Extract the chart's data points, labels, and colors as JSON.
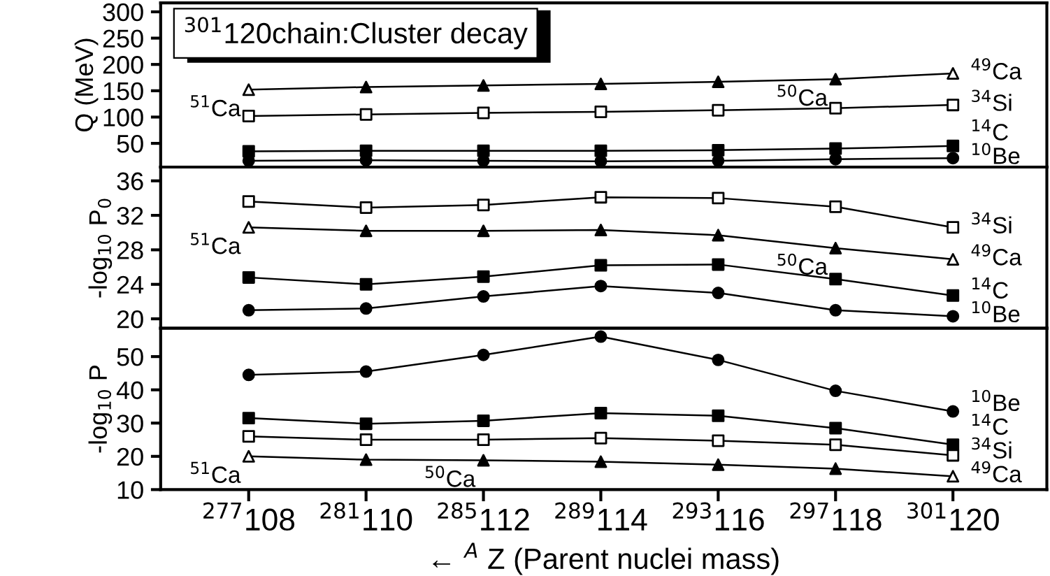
{
  "chart_data": [
    {
      "type": "line",
      "title": "$^{301}$120chain:Cluster decay",
      "ylabel": "Q (MeV)",
      "categories": [
        "$^{277}$108",
        "$^{281}$110",
        "$^{285}$112",
        "$^{289}$114",
        "$^{293}$116",
        "$^{297}$118",
        "$^{301}$120"
      ],
      "ylim": [
        5,
        317
      ],
      "yticks": [
        50,
        100,
        150,
        200,
        250,
        300
      ],
      "tick_labels": "y",
      "grid": false,
      "legend": false,
      "series": [
        {
          "name": "$^{49}$Ca",
          "color": "#000000",
          "marker": "triangle",
          "colors": [
            "#ffffff",
            "#000000",
            "#000000",
            "#000000",
            "#000000",
            "#000000",
            "#ffffff"
          ],
          "values": [
            152,
            157,
            160,
            163,
            167,
            172,
            183
          ]
        },
        {
          "name": "$^{34}$Si",
          "color": "#000000",
          "marker": "square",
          "colors": [
            "#ffffff",
            "#ffffff",
            "#ffffff",
            "#ffffff",
            "#ffffff",
            "#ffffff",
            "#ffffff"
          ],
          "values": [
            102,
            105,
            108,
            110,
            113,
            117,
            123
          ]
        },
        {
          "name": "$^{14}$C",
          "color": "#000000",
          "marker": "square",
          "values": [
            35,
            36,
            36,
            36,
            37,
            40,
            45
          ]
        },
        {
          "name": "$^{10}$Be",
          "color": "#000000",
          "marker": "circle",
          "values": [
            17,
            18,
            17,
            16,
            17,
            20,
            22
          ]
        }
      ],
      "annotations": [
        {
          "text": "$^{51}$Ca",
          "x": "$^{277}$108",
          "y": 152
        },
        {
          "text": "$^{50}$Ca",
          "x": "$^{297}$118",
          "y": 172
        }
      ]
    },
    {
      "type": "line",
      "ylabel": "-log$_{10}$ P$_{0}$",
      "categories": [
        "$^{277}$108",
        "$^{281}$110",
        "$^{285}$112",
        "$^{289}$114",
        "$^{293}$116",
        "$^{297}$118",
        "$^{301}$120"
      ],
      "ylim": [
        18.9,
        37.6
      ],
      "yticks": [
        20,
        24,
        28,
        32,
        36
      ],
      "tick_labels": "y",
      "grid": false,
      "legend": false,
      "series": [
        {
          "name": "$^{34}$Si",
          "color": "#000000",
          "marker": "square",
          "colors": [
            "#ffffff",
            "#ffffff",
            "#ffffff",
            "#ffffff",
            "#ffffff",
            "#ffffff",
            "#ffffff"
          ],
          "values": [
            33.6,
            32.9,
            33.2,
            34.1,
            34.0,
            33.0,
            30.6
          ]
        },
        {
          "name": "$^{49}$Ca",
          "color": "#000000",
          "marker": "triangle",
          "colors": [
            "#ffffff",
            "#000000",
            "#000000",
            "#000000",
            "#000000",
            "#000000",
            "#ffffff"
          ],
          "values": [
            30.6,
            30.2,
            30.2,
            30.3,
            29.7,
            28.2,
            26.9
          ]
        },
        {
          "name": "$^{14}$C",
          "color": "#000000",
          "marker": "square",
          "values": [
            24.8,
            24.0,
            24.9,
            26.2,
            26.3,
            24.6,
            22.7
          ]
        },
        {
          "name": "$^{10}$Be",
          "color": "#000000",
          "marker": "circle",
          "values": [
            21.0,
            21.2,
            22.6,
            23.8,
            23.0,
            21.0,
            20.3
          ]
        }
      ],
      "annotations": [
        {
          "text": "$^{51}$Ca",
          "x": "$^{277}$108",
          "y": 30.6
        },
        {
          "text": "$^{50}$Ca",
          "x": "$^{297}$118",
          "y": 28.2
        }
      ]
    },
    {
      "type": "line",
      "ylabel": "-log$_{10}$ P",
      "xlabel": "← $^{A}$ Z (Parent nuclei mass)",
      "categories": [
        "$^{277}$108",
        "$^{281}$110",
        "$^{285}$112",
        "$^{289}$114",
        "$^{293}$116",
        "$^{297}$118",
        "$^{301}$120"
      ],
      "ylim": [
        10,
        58.5
      ],
      "yticks": [
        10,
        20,
        30,
        40,
        50
      ],
      "grid": false,
      "legend": false,
      "series": [
        {
          "name": "$^{10}$Be",
          "color": "#000000",
          "marker": "circle",
          "values": [
            44.5,
            45.5,
            50.5,
            56,
            49,
            39.7,
            33.5
          ]
        },
        {
          "name": "$^{14}$C",
          "color": "#000000",
          "marker": "square",
          "values": [
            31.5,
            29.8,
            30.7,
            33,
            32.2,
            28.5,
            23.5
          ]
        },
        {
          "name": "$^{34}$Si",
          "color": "#000000",
          "marker": "square",
          "colors": [
            "#ffffff",
            "#ffffff",
            "#ffffff",
            "#ffffff",
            "#ffffff",
            "#ffffff",
            "#ffffff"
          ],
          "values": [
            26,
            25,
            25,
            25.5,
            24.7,
            23.5,
            20.3
          ]
        },
        {
          "name": "$^{49}$Ca",
          "color": "#000000",
          "marker": "triangle",
          "colors": [
            "#ffffff",
            "#000000",
            "#000000",
            "#000000",
            "#000000",
            "#000000",
            "#ffffff"
          ],
          "values": [
            20,
            19,
            18.8,
            18.4,
            17.5,
            16.3,
            14
          ]
        }
      ],
      "annotations": [
        {
          "text": "$^{51}$Ca",
          "x": "$^{277}$108",
          "y": 20
        },
        {
          "text": "$^{50}$Ca",
          "x": "$^{285}$112",
          "y": 18.8
        }
      ]
    }
  ]
}
